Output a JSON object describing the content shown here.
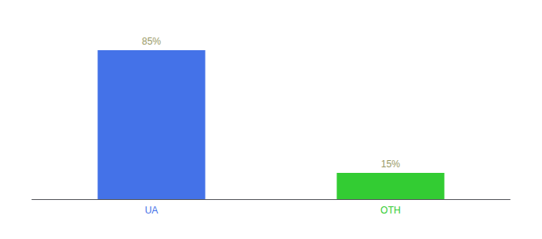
{
  "chart_data": {
    "type": "bar",
    "categories": [
      "UA",
      "OTH"
    ],
    "values": [
      85,
      15
    ],
    "value_labels": [
      "85%",
      "15%"
    ],
    "colors": [
      "#4472e8",
      "#33cc33"
    ],
    "ylim": [
      0,
      100
    ],
    "data_labels": true,
    "tick_labels": "x",
    "grid": false
  }
}
